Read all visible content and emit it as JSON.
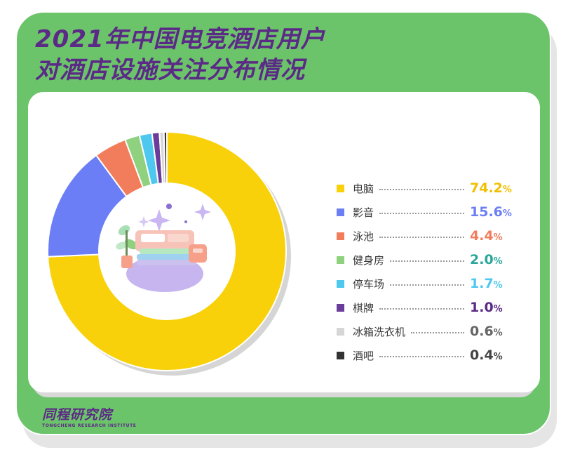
{
  "title": {
    "line1": "2021年中国电竞酒店用户",
    "line2": "对酒店设施关注分布情况"
  },
  "chart_data": {
    "type": "pie",
    "donut": true,
    "unit": "%",
    "categories": [
      "电脑",
      "影音",
      "泳池",
      "健身房",
      "停车场",
      "棋牌",
      "冰箱洗衣机",
      "酒吧"
    ],
    "values": [
      74.2,
      15.6,
      4.4,
      2.0,
      1.7,
      1.0,
      0.6,
      0.4
    ],
    "value_labels": [
      "74.2",
      "15.6",
      "4.4",
      "2.0",
      "1.7",
      "1.0",
      "0.6",
      "0.4"
    ],
    "colors": [
      "#f8d10b",
      "#6b7ef5",
      "#f27d5c",
      "#8fd17e",
      "#4fc8ef",
      "#6a3d9a",
      "#d6d6d6",
      "#333333"
    ],
    "label_colors": [
      "#f0c000",
      "#6b7ef5",
      "#f27d5c",
      "#2aa79b",
      "#4fc8ef",
      "#5b2a86",
      "#666666",
      "#444444"
    ],
    "legend_position": "right"
  },
  "footer": {
    "logo_cn": "同程研究院",
    "logo_en": "TONGCHENG RESEARCH INSTITUTE"
  },
  "colors": {
    "background_green": "#6cc46a",
    "title_purple": "#5b2a86",
    "panel_white": "#ffffff"
  },
  "icons": [
    "sofa-illustration",
    "sparkle-icon",
    "plant-icon"
  ]
}
